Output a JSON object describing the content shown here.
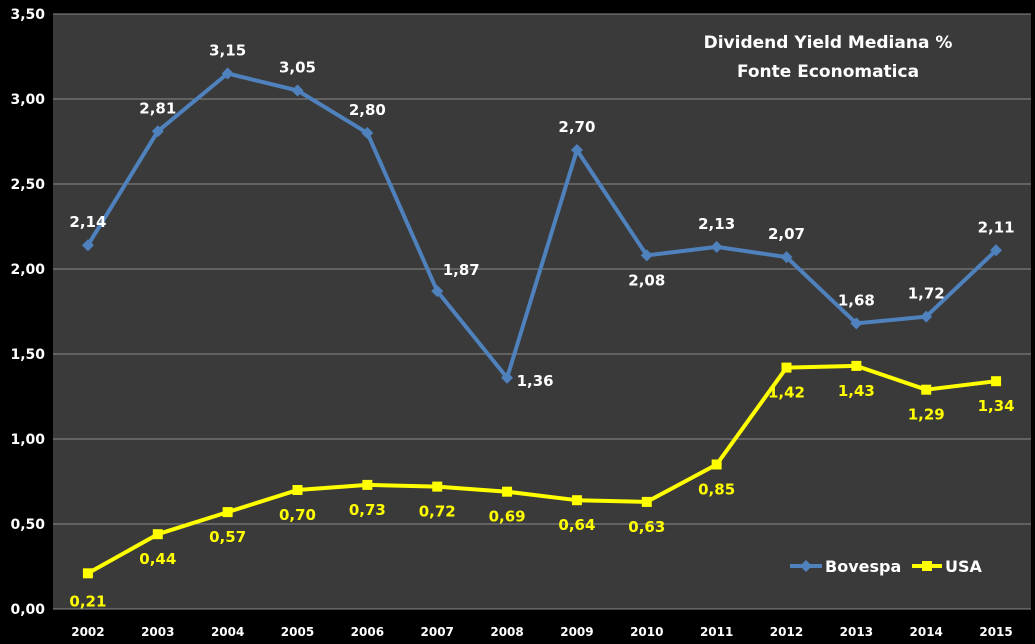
{
  "chart_data": {
    "type": "line",
    "title": [
      "Dividend Yield Mediana  %",
      "Fonte Economatica"
    ],
    "categories": [
      "2002",
      "2003",
      "2004",
      "2005",
      "2006",
      "2007",
      "2008",
      "2009",
      "2010",
      "2011",
      "2012",
      "2013",
      "2014",
      "2015"
    ],
    "y_tick_labels": [
      "0,00",
      "0,50",
      "1,00",
      "1,50",
      "2,00",
      "2,50",
      "3,00",
      "3,50"
    ],
    "ylim": [
      0,
      3.5
    ],
    "grid": true,
    "legend_position": "bottom-right",
    "series": [
      {
        "name": "Bovespa",
        "color": "#4f81bd",
        "label_color": "#ffffff",
        "marker": "diamond",
        "values": [
          2.14,
          2.81,
          3.15,
          3.05,
          2.8,
          1.87,
          1.36,
          2.7,
          2.08,
          2.13,
          2.07,
          1.68,
          1.72,
          2.11
        ],
        "labels": [
          "2,14",
          "2,81",
          "3,15",
          "3,05",
          "2,80",
          "1,87",
          "1,36",
          "2,70",
          "2,08",
          "2,13",
          "2,07",
          "1,68",
          "1,72",
          "2,11"
        ]
      },
      {
        "name": "USA",
        "color": "#ffff00",
        "label_color": "#ffff00",
        "marker": "square",
        "values": [
          0.21,
          0.44,
          0.57,
          0.7,
          0.73,
          0.72,
          0.69,
          0.64,
          0.63,
          0.85,
          1.42,
          1.43,
          1.29,
          1.34
        ],
        "labels": [
          "0,21",
          "0,44",
          "0,57",
          "0,70",
          "0,73",
          "0,72",
          "0,69",
          "0,64",
          "0,63",
          "0,85",
          "1,42",
          "1,43",
          "1,29",
          "1,34"
        ]
      }
    ],
    "colors": {
      "plot_background": "#3a3a3a",
      "gridline": "#8a8a8a",
      "page_background": "#000000"
    }
  }
}
